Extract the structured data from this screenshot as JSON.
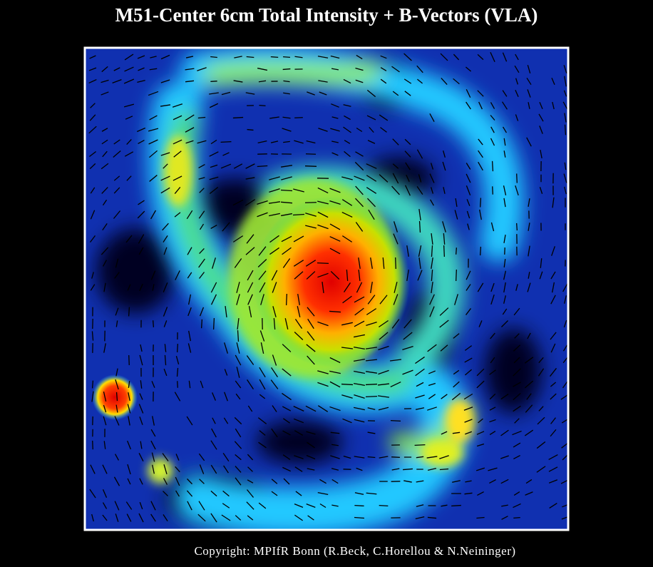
{
  "header": {
    "title": "M51-Center 6cm Total Intensity + B-Vectors (VLA)"
  },
  "footer": {
    "copyright": "Copyright: MPIfR Bonn (R.Beck, C.Horellou & N.Neininger)"
  }
}
